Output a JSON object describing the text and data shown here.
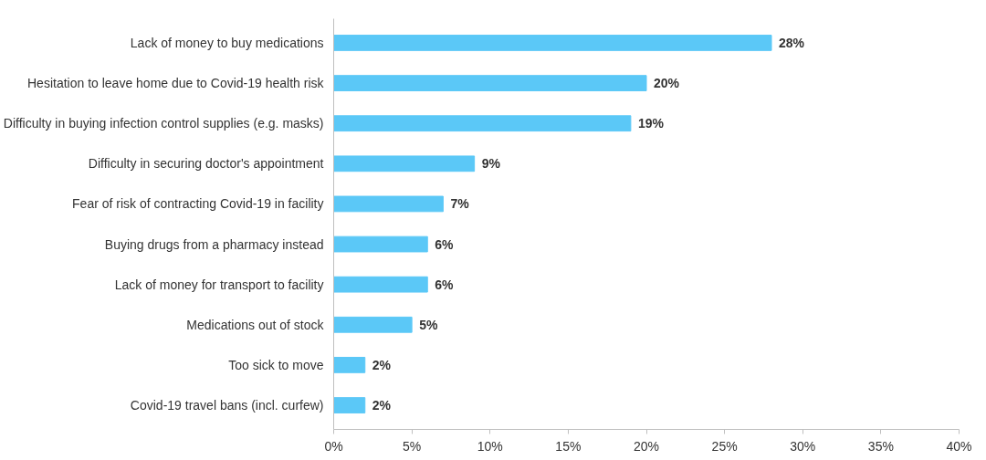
{
  "chart_data": {
    "type": "bar",
    "orientation": "horizontal",
    "categories": [
      "Lack of money to buy medications",
      "Hesitation to leave home due to Covid-19 health risk",
      "Difficulty in buying infection control supplies (e.g. masks)",
      "Difficulty in securing doctor's appointment",
      "Fear of risk of contracting Covid-19 in facility",
      "Buying drugs from a pharmacy instead",
      "Lack of money for transport to facility",
      "Medications out of stock",
      "Too sick to move",
      "Covid-19 travel bans (incl. curfew)"
    ],
    "values": [
      28,
      20,
      19,
      9,
      7,
      6,
      6,
      5,
      2,
      2
    ],
    "value_labels": [
      "28%",
      "20%",
      "19%",
      "9%",
      "7%",
      "6%",
      "6%",
      "5%",
      "2%",
      "2%"
    ],
    "color": "#5bc8f7",
    "xlim": [
      0,
      40
    ],
    "xticks": [
      {
        "value": 0,
        "label": "0%"
      },
      {
        "value": 5,
        "label": "5%"
      },
      {
        "value": 10,
        "label": "10%"
      },
      {
        "value": 15,
        "label": "15%"
      },
      {
        "value": 20,
        "label": "20%"
      },
      {
        "value": 25,
        "label": "25%"
      },
      {
        "value": 30,
        "label": "30%"
      },
      {
        "value": 35,
        "label": "35%"
      },
      {
        "value": 40,
        "label": "40%"
      }
    ],
    "grid": false
  }
}
